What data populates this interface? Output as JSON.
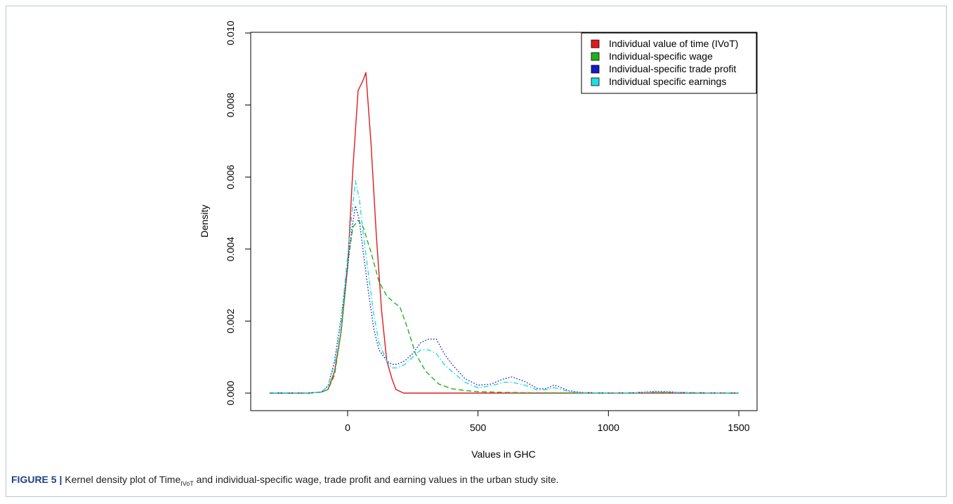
{
  "chart_data": {
    "type": "line",
    "title": "",
    "xlabel": "Values in GHC",
    "ylabel": "Density",
    "xlim": [
      -300,
      1500
    ],
    "ylim": [
      0,
      0.01
    ],
    "x_ticks": [
      "0",
      "500",
      "1000",
      "1500"
    ],
    "y_ticks": [
      "0.000",
      "0.002",
      "0.004",
      "0.006",
      "0.008",
      "0.010"
    ],
    "x_tick_values": [
      0,
      500,
      1000,
      1500
    ],
    "y_tick_values": [
      0,
      0.002,
      0.004,
      0.006,
      0.008,
      0.01
    ],
    "grid": false,
    "legend_position": "top-right",
    "series": [
      {
        "name": "Individual value of time (IVoT)",
        "color": "#e31a1c",
        "dash": "solid",
        "x": [
          -300,
          -150,
          -100,
          -75,
          -50,
          -25,
          0,
          20,
          40,
          60,
          70,
          90,
          110,
          130,
          150,
          170,
          185,
          215,
          300,
          500,
          700,
          1000,
          1200,
          1500
        ],
        "y": [
          0,
          0,
          3e-05,
          0.0001,
          0.0006,
          0.0017,
          0.0035,
          0.0062,
          0.0084,
          0.0087,
          0.0089,
          0.0069,
          0.0044,
          0.0023,
          0.0009,
          0.0004,
          0.0001,
          0,
          0,
          0,
          0,
          0,
          0,
          0
        ]
      },
      {
        "name": "Individual-specific wage",
        "color": "#22b022",
        "dash": "dashed",
        "x": [
          -300,
          -150,
          -100,
          -75,
          -50,
          -25,
          0,
          20,
          40,
          60,
          90,
          120,
          150,
          180,
          200,
          230,
          260,
          300,
          350,
          400,
          450,
          500,
          600,
          700,
          1000,
          1200,
          1500
        ],
        "y": [
          0,
          0,
          3e-05,
          0.0001,
          0.0005,
          0.0017,
          0.0036,
          0.0046,
          0.0048,
          0.0046,
          0.0039,
          0.0031,
          0.0027,
          0.0025,
          0.0024,
          0.0018,
          0.0011,
          0.0006,
          0.00025,
          0.00012,
          7e-05,
          4e-05,
          2e-05,
          1e-05,
          0,
          2e-05,
          0
        ]
      },
      {
        "name": "Individual-specific trade profit",
        "color": "#1818c8",
        "dash": "dotted",
        "x": [
          -300,
          -150,
          -100,
          -75,
          -50,
          -25,
          0,
          15,
          30,
          45,
          60,
          80,
          100,
          120,
          150,
          170,
          190,
          220,
          250,
          280,
          310,
          340,
          370,
          400,
          450,
          500,
          550,
          600,
          630,
          680,
          730,
          760,
          790,
          810,
          850,
          900,
          1000,
          1100,
          1180,
          1220,
          1300,
          1500
        ],
        "y": [
          0,
          0,
          3e-05,
          0.0002,
          0.0009,
          0.0021,
          0.0035,
          0.0045,
          0.0052,
          0.0048,
          0.0039,
          0.0028,
          0.0018,
          0.0012,
          0.0009,
          0.0008,
          0.0008,
          0.0009,
          0.0011,
          0.0014,
          0.0015,
          0.0015,
          0.0011,
          0.0008,
          0.0004,
          0.00022,
          0.00025,
          0.0004,
          0.00045,
          0.00032,
          0.00012,
          0.00012,
          0.00022,
          0.00018,
          6e-05,
          2e-05,
          0,
          1e-05,
          5e-05,
          4e-05,
          1e-05,
          0
        ]
      },
      {
        "name": "Individual specific earnings",
        "color": "#1fe0e0",
        "dash": "dotdash",
        "x": [
          -300,
          -150,
          -100,
          -75,
          -50,
          -25,
          0,
          15,
          30,
          45,
          60,
          80,
          100,
          120,
          150,
          170,
          190,
          220,
          250,
          280,
          310,
          340,
          370,
          400,
          450,
          500,
          550,
          600,
          630,
          680,
          730,
          760,
          790,
          810,
          850,
          900,
          1000,
          1100,
          1180,
          1220,
          1300,
          1500
        ],
        "y": [
          0,
          0,
          3e-05,
          0.0002,
          0.0008,
          0.002,
          0.0038,
          0.0049,
          0.0059,
          0.0054,
          0.0044,
          0.0033,
          0.0022,
          0.0014,
          0.0009,
          0.0007,
          0.0007,
          0.0008,
          0.001,
          0.0012,
          0.0012,
          0.0011,
          0.0008,
          0.0006,
          0.0003,
          0.00015,
          0.0002,
          0.0003,
          0.0003,
          0.00022,
          8e-05,
          0.0001,
          0.00015,
          0.00012,
          4e-05,
          1e-05,
          0,
          1e-05,
          3e-05,
          3e-05,
          1e-05,
          0
        ]
      }
    ]
  },
  "caption": {
    "label": "FIGURE 5 |",
    "text_before": " Kernel density plot of Time",
    "subscript": "IVoT",
    "text_after": " and individual-specific wage, trade profit and earning values in the urban study site."
  }
}
